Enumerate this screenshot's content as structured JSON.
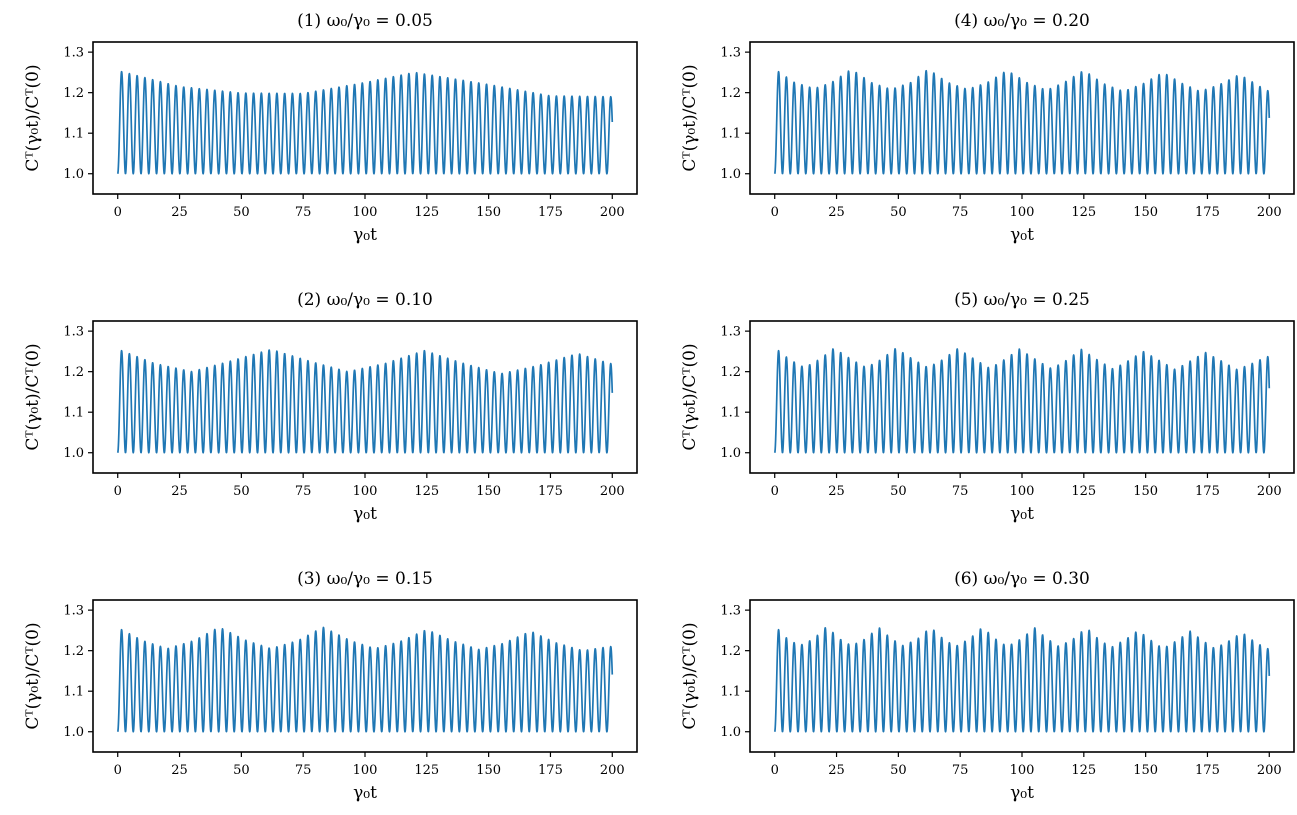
{
  "line_color": "#1f77b4",
  "chart_data": [
    {
      "type": "line",
      "title": "(1) ω₀/γ₀ = 0.05",
      "xlabel": "γ₀t",
      "ylabel": "Cᵀ(γ₀t)/Cᵀ(0)",
      "xlim": [
        -10,
        210
      ],
      "ylim": [
        0.95,
        1.325
      ],
      "xticks": [
        0,
        25,
        50,
        75,
        100,
        125,
        150,
        175,
        200
      ],
      "xtick_labels": [
        "0",
        "25",
        "50",
        "75",
        "100",
        "125",
        "150",
        "175",
        "200"
      ],
      "yticks": [
        1.0,
        1.1,
        1.2,
        1.3
      ],
      "ytick_labels": [
        "1.0",
        "1.1",
        "1.2",
        "1.3"
      ],
      "grid": false,
      "series": [
        {
          "oscillation_period": 3.14,
          "min_value": 1.0,
          "peaks": {
            "x": [
              1.5,
              25,
              50,
              75,
              100,
              120,
              150,
              175,
              199
            ],
            "y": [
              1.252,
              1.215,
              1.199,
              1.198,
              1.225,
              1.25,
              1.22,
              1.192,
              1.19
            ]
          }
        }
      ]
    },
    {
      "type": "line",
      "title": "(2) ω₀/γ₀ = 0.10",
      "xlabel": "γ₀t",
      "ylabel": "Cᵀ(γ₀t)/Cᵀ(0)",
      "xlim": [
        -10,
        210
      ],
      "ylim": [
        0.95,
        1.325
      ],
      "xticks": [
        0,
        25,
        50,
        75,
        100,
        125,
        150,
        175,
        200
      ],
      "xtick_labels": [
        "0",
        "25",
        "50",
        "75",
        "100",
        "125",
        "150",
        "175",
        "200"
      ],
      "yticks": [
        1.0,
        1.1,
        1.2,
        1.3
      ],
      "ytick_labels": [
        "1.0",
        "1.1",
        "1.2",
        "1.3"
      ],
      "grid": false,
      "series": [
        {
          "oscillation_period": 3.14,
          "min_value": 1.0,
          "peaks": {
            "x": [
              1.5,
              15,
              30,
              45,
              62,
              78,
              93,
              108,
              124,
              140,
              155,
              170,
              186,
              199
            ],
            "y": [
              1.252,
              1.22,
              1.2,
              1.225,
              1.255,
              1.225,
              1.2,
              1.22,
              1.252,
              1.22,
              1.195,
              1.215,
              1.245,
              1.22
            ]
          }
        }
      ]
    },
    {
      "type": "line",
      "title": "(3) ω₀/γ₀ = 0.15",
      "xlabel": "γ₀t",
      "ylabel": "Cᵀ(γ₀t)/Cᵀ(0)",
      "xlim": [
        -10,
        210
      ],
      "ylim": [
        0.95,
        1.325
      ],
      "xticks": [
        0,
        25,
        50,
        75,
        100,
        125,
        150,
        175,
        200
      ],
      "xtick_labels": [
        "0",
        "25",
        "50",
        "75",
        "100",
        "125",
        "150",
        "175",
        "200"
      ],
      "yticks": [
        1.0,
        1.1,
        1.2,
        1.3
      ],
      "ytick_labels": [
        "1.0",
        "1.1",
        "1.2",
        "1.3"
      ],
      "grid": false,
      "series": [
        {
          "oscillation_period": 3.14,
          "min_value": 1.0,
          "peaks": {
            "x": [
              1.5,
              10,
              20,
              31,
              41,
              52,
              62,
              73,
              83,
              94,
              104,
              114,
              125,
              135,
              146,
              156,
              167,
              177,
              188,
              199
            ],
            "y": [
              1.252,
              1.225,
              1.205,
              1.225,
              1.258,
              1.225,
              1.205,
              1.225,
              1.258,
              1.225,
              1.205,
              1.222,
              1.252,
              1.225,
              1.203,
              1.218,
              1.248,
              1.22,
              1.2,
              1.21
            ]
          }
        }
      ]
    },
    {
      "type": "line",
      "title": "(4) ω₀/γ₀ = 0.20",
      "xlabel": "γ₀t",
      "ylabel": "Cᵀ(γ₀t)/Cᵀ(0)",
      "xlim": [
        -10,
        210
      ],
      "ylim": [
        0.95,
        1.325
      ],
      "xticks": [
        0,
        25,
        50,
        75,
        100,
        125,
        150,
        175,
        200
      ],
      "xtick_labels": [
        "0",
        "25",
        "50",
        "75",
        "100",
        "125",
        "150",
        "175",
        "200"
      ],
      "yticks": [
        1.0,
        1.1,
        1.2,
        1.3
      ],
      "ytick_labels": [
        "1.0",
        "1.1",
        "1.2",
        "1.3"
      ],
      "grid": false,
      "series": [
        {
          "oscillation_period": 3.14,
          "min_value": 1.0,
          "peaks": {
            "x": [
              1.5,
              8,
              16,
              23,
              31,
              39,
              47,
              55,
              62,
              70,
              78,
              86,
              94,
              102,
              110,
              117,
              125,
              133,
              141,
              149,
              157,
              165,
              172,
              180,
              188,
              199
            ],
            "y": [
              1.252,
              1.225,
              1.21,
              1.225,
              1.258,
              1.225,
              1.208,
              1.225,
              1.258,
              1.225,
              1.208,
              1.225,
              1.255,
              1.225,
              1.206,
              1.225,
              1.255,
              1.222,
              1.203,
              1.222,
              1.25,
              1.222,
              1.203,
              1.22,
              1.245,
              1.205
            ]
          }
        }
      ]
    },
    {
      "type": "line",
      "title": "(5) ω₀/γ₀ = 0.25",
      "xlabel": "γ₀t",
      "ylabel": "Cᵀ(γ₀t)/Cᵀ(0)",
      "xlim": [
        -10,
        210
      ],
      "ylim": [
        0.95,
        1.325
      ],
      "xticks": [
        0,
        25,
        50,
        75,
        100,
        125,
        150,
        175,
        200
      ],
      "xtick_labels": [
        "0",
        "25",
        "50",
        "75",
        "100",
        "125",
        "150",
        "175",
        "200"
      ],
      "yticks": [
        1.0,
        1.1,
        1.2,
        1.3
      ],
      "ytick_labels": [
        "1.0",
        "1.1",
        "1.2",
        "1.3"
      ],
      "grid": false,
      "series": [
        {
          "oscillation_period": 3.14,
          "min_value": 1.0,
          "peaks": {
            "x": [
              1.5,
              6,
              12,
              18,
              24,
              31,
              37,
              43,
              49,
              56,
              62,
              68,
              74,
              81,
              87,
              93,
              99,
              106,
              112,
              118,
              124,
              131,
              137,
              143,
              149,
              156,
              162,
              168,
              174,
              181,
              187,
              193,
              199
            ],
            "y": [
              1.252,
              1.23,
              1.21,
              1.23,
              1.258,
              1.23,
              1.21,
              1.23,
              1.258,
              1.23,
              1.21,
              1.23,
              1.257,
              1.23,
              1.208,
              1.23,
              1.256,
              1.228,
              1.207,
              1.228,
              1.255,
              1.227,
              1.206,
              1.227,
              1.25,
              1.226,
              1.205,
              1.226,
              1.248,
              1.225,
              1.205,
              1.22,
              1.237
            ]
          }
        }
      ]
    },
    {
      "type": "line",
      "title": "(6) ω₀/γ₀ = 0.30",
      "xlabel": "γ₀t",
      "ylabel": "Cᵀ(γ₀t)/Cᵀ(0)",
      "xlim": [
        -10,
        210
      ],
      "ylim": [
        0.95,
        1.325
      ],
      "xticks": [
        0,
        25,
        50,
        75,
        100,
        125,
        150,
        175,
        200
      ],
      "xtick_labels": [
        "0",
        "25",
        "50",
        "75",
        "100",
        "125",
        "150",
        "175",
        "200"
      ],
      "yticks": [
        1.0,
        1.1,
        1.2,
        1.3
      ],
      "ytick_labels": [
        "1.0",
        "1.1",
        "1.2",
        "1.3"
      ],
      "grid": false,
      "series": [
        {
          "oscillation_period": 3.14,
          "min_value": 1.0,
          "peaks": {
            "x": [
              1.5,
              5,
              10,
              16,
              21,
              26,
              31,
              37,
              42,
              47,
              52,
              58,
              63,
              68,
              73,
              79,
              84,
              89,
              94,
              100,
              105,
              110,
              115,
              121,
              126,
              131,
              136,
              142,
              147,
              152,
              157,
              163,
              168,
              173,
              178,
              184,
              189,
              194,
              199
            ],
            "y": [
              1.252,
              1.23,
              1.212,
              1.23,
              1.26,
              1.23,
              1.212,
              1.23,
              1.258,
              1.23,
              1.212,
              1.23,
              1.258,
              1.23,
              1.21,
              1.23,
              1.258,
              1.23,
              1.21,
              1.23,
              1.257,
              1.23,
              1.21,
              1.23,
              1.257,
              1.228,
              1.208,
              1.228,
              1.25,
              1.226,
              1.205,
              1.226,
              1.248,
              1.225,
              1.205,
              1.225,
              1.245,
              1.222,
              1.205
            ]
          }
        }
      ]
    }
  ]
}
